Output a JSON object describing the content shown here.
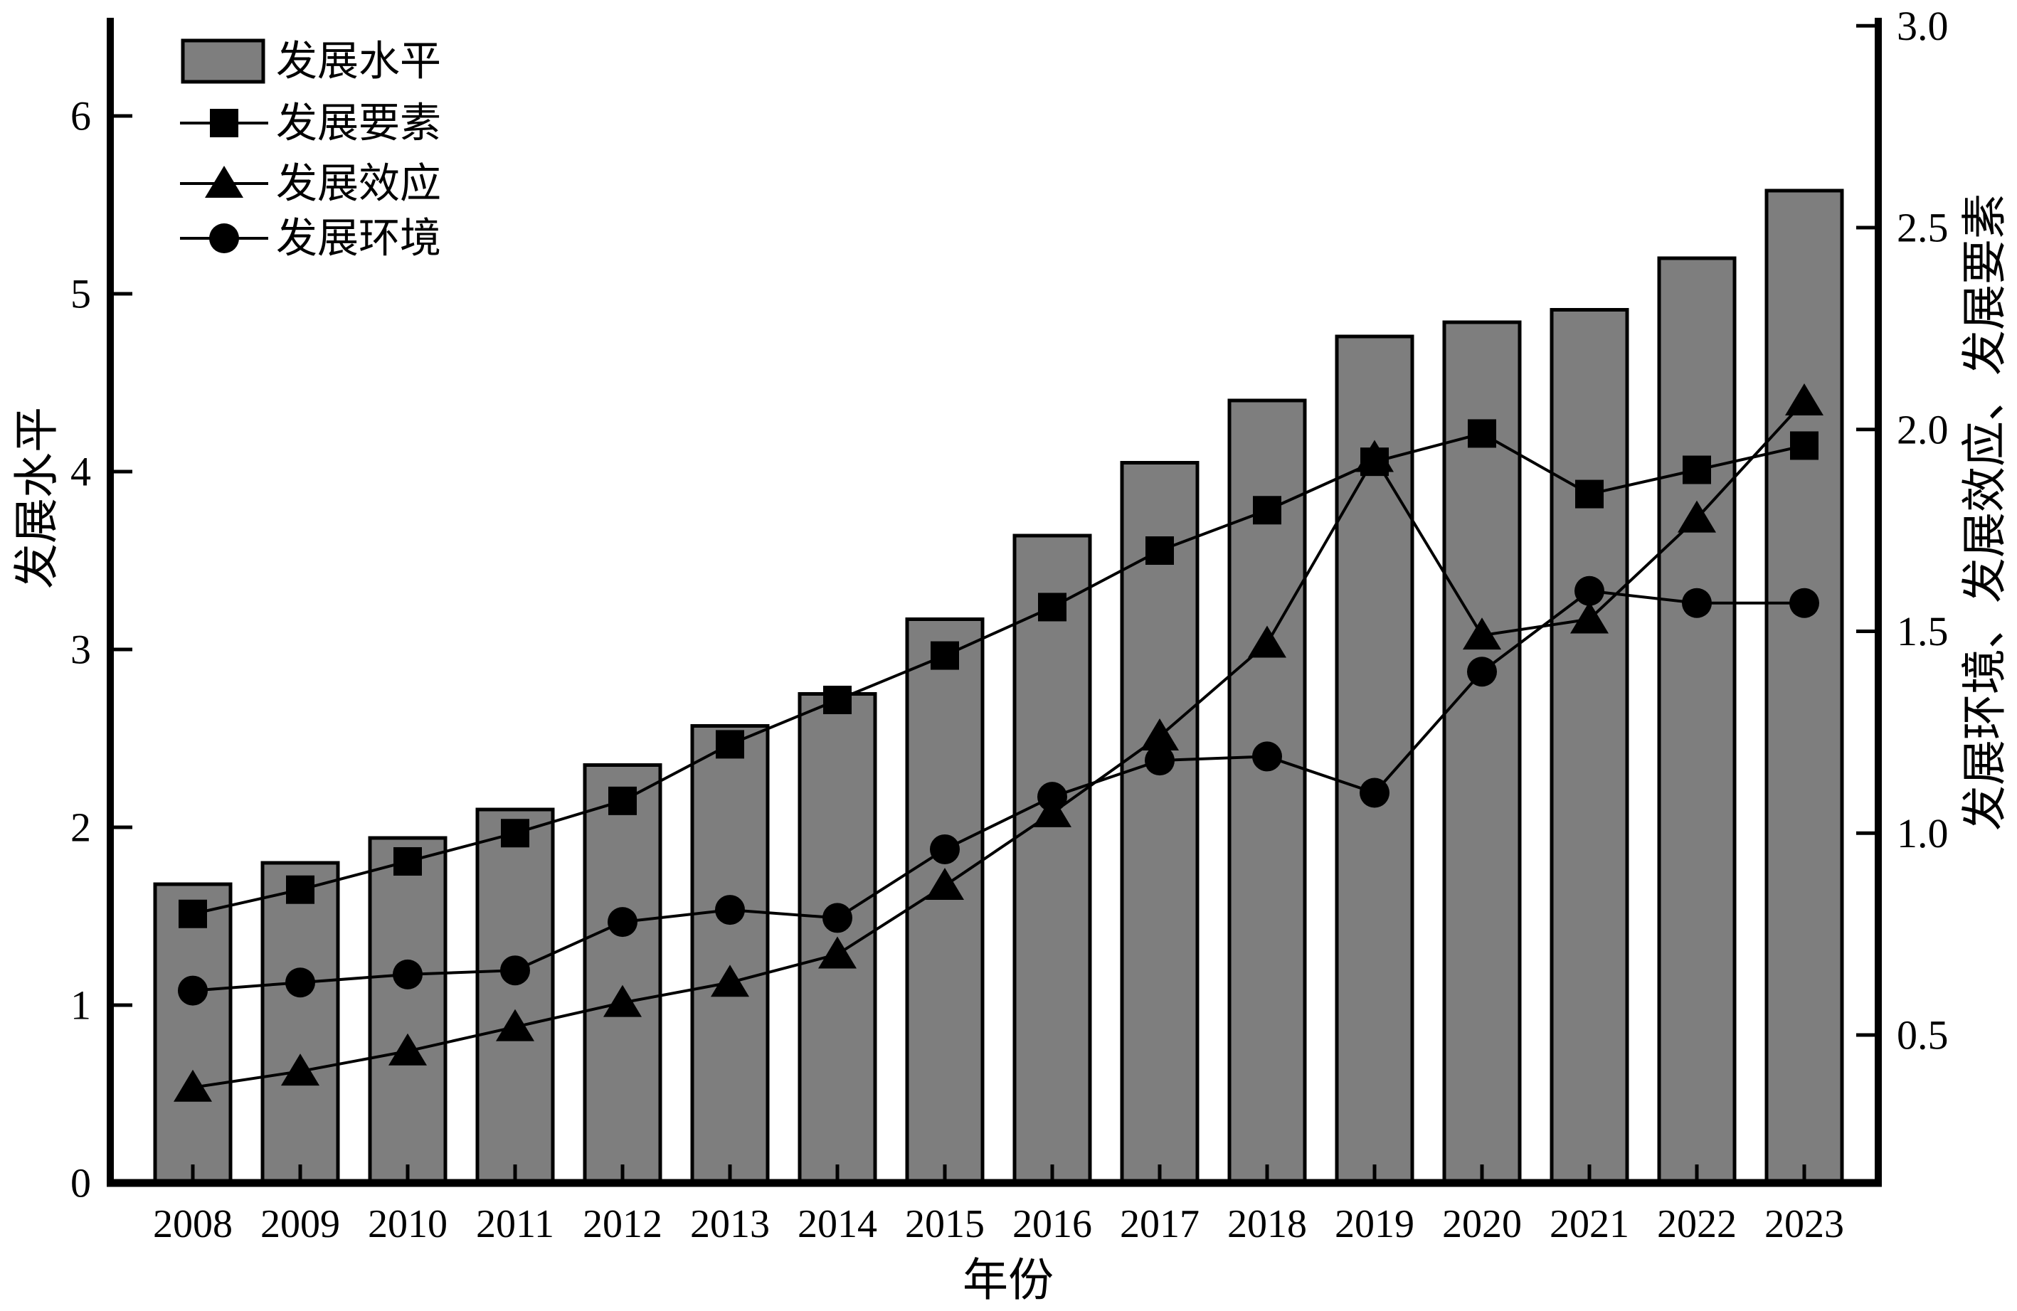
{
  "chart_data": {
    "type": "bar-line-combo",
    "title": "",
    "categories": [
      "2008",
      "2009",
      "2010",
      "2011",
      "2012",
      "2013",
      "2014",
      "2015",
      "2016",
      "2017",
      "2018",
      "2019",
      "2020",
      "2021",
      "2022",
      "2023"
    ],
    "xlabel": "年份",
    "left_axis": {
      "label": "发展水平",
      "ticks": [
        "0",
        "1",
        "2",
        "3",
        "4",
        "5",
        "6"
      ],
      "min": 0,
      "max": 6.53
    },
    "right_axis": {
      "label": "发展环境、发展效应、发展要素",
      "ticks": [
        "0.5",
        "1.0",
        "1.5",
        "2.0",
        "2.5",
        "3.0"
      ],
      "min": 0.13,
      "max": 3.0
    },
    "grid": false,
    "legend_position": "top-left",
    "colors": {
      "bar_fill": "#7e7e7e",
      "bar_border": "#000000",
      "line": "#000000",
      "background": "#ffffff",
      "text": "#000000"
    },
    "series": [
      {
        "name": "发展水平",
        "type": "bar",
        "axis": "left",
        "marker": "bar",
        "values": [
          1.68,
          1.8,
          1.94,
          2.1,
          2.35,
          2.57,
          2.75,
          3.17,
          3.64,
          4.05,
          4.4,
          4.76,
          4.84,
          4.91,
          5.2,
          5.58
        ]
      },
      {
        "name": "发展要素",
        "type": "line",
        "axis": "right",
        "marker": "square",
        "values": [
          0.8,
          0.86,
          0.93,
          1.0,
          1.08,
          1.22,
          1.33,
          1.44,
          1.56,
          1.7,
          1.8,
          1.92,
          1.99,
          1.84,
          1.9,
          1.96
        ]
      },
      {
        "name": "发展效应",
        "type": "line",
        "axis": "right",
        "marker": "triangle",
        "values": [
          0.37,
          0.41,
          0.46,
          0.52,
          0.58,
          0.63,
          0.7,
          0.87,
          1.05,
          1.24,
          1.47,
          1.93,
          1.49,
          1.53,
          1.78,
          2.07
        ]
      },
      {
        "name": "发展环境",
        "type": "line",
        "axis": "right",
        "marker": "circle",
        "values": [
          0.61,
          0.63,
          0.65,
          0.66,
          0.78,
          0.81,
          0.79,
          0.96,
          1.09,
          1.18,
          1.19,
          1.1,
          1.4,
          1.6,
          1.57,
          1.57
        ]
      }
    ]
  }
}
